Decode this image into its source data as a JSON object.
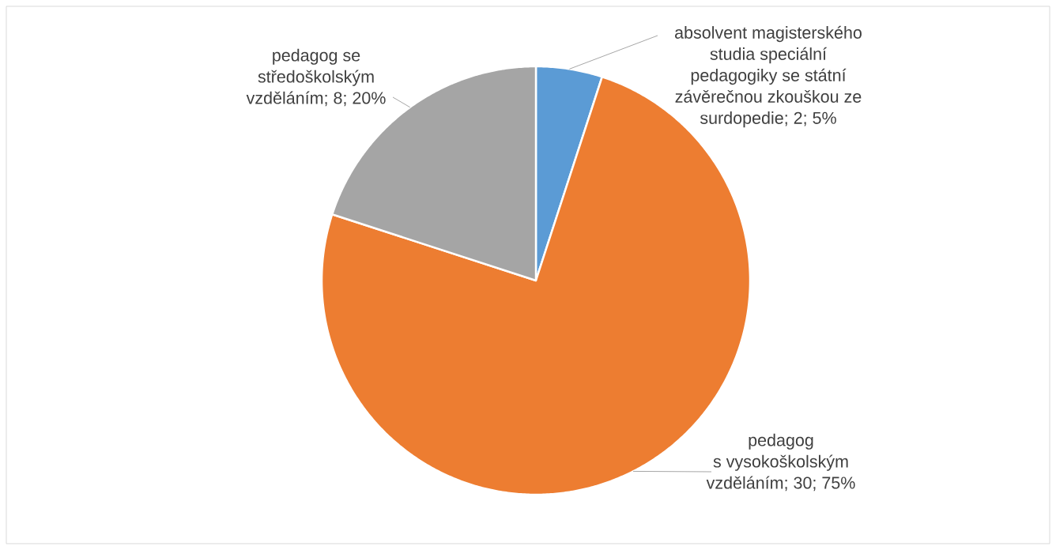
{
  "chart_data": {
    "type": "pie",
    "categories": [
      "absolvent magisterského studia speciální pedagogiky se státní závěrečnou zkouškou ze surdopedie",
      "pedagog s vysokoškolským vzděláním",
      "pedagog se středoškolským vzděláním"
    ],
    "values": [
      2,
      30,
      8
    ],
    "value_labels": [
      "; 2; 5%",
      "; 30; 75%",
      "; 8; 20%"
    ],
    "colors": [
      "#5b9bd5",
      "#ed7d31",
      "#a5a5a5"
    ]
  }
}
